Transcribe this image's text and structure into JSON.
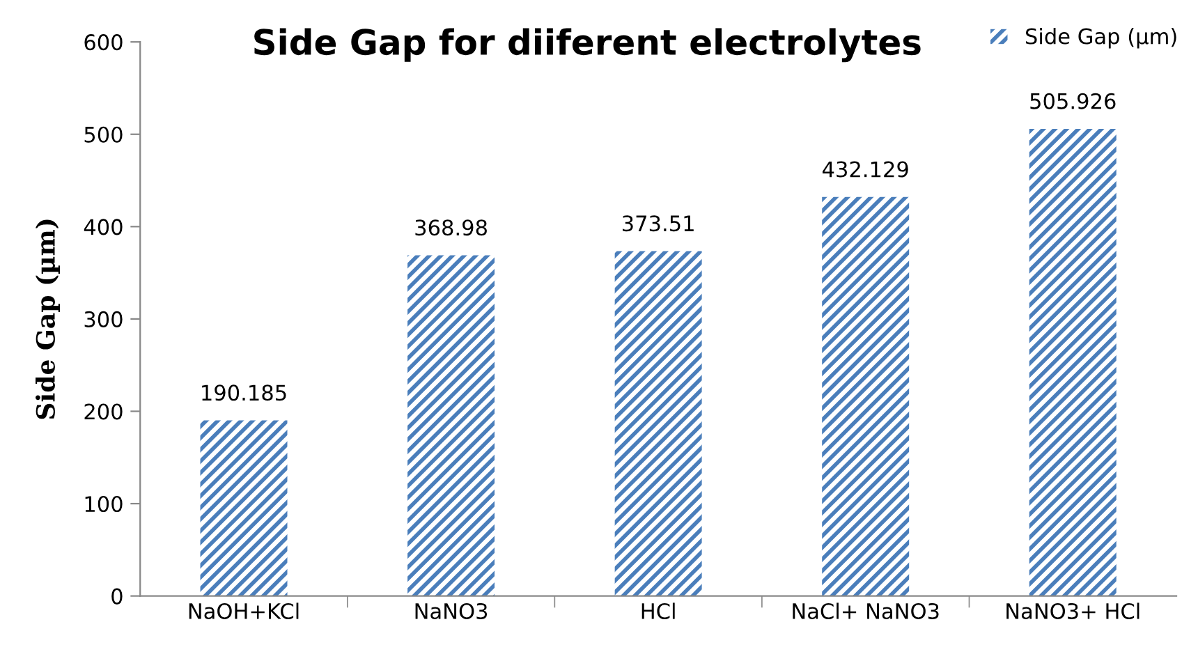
{
  "chart_data": {
    "type": "bar",
    "title": "Side Gap for diiferent electrolytes",
    "ylabel": "Side Gap (µm)",
    "categories": [
      "NaOH+KCl",
      "NaNO3",
      "HCl",
      "NaCl+ NaNO3",
      "NaNO3+ HCl"
    ],
    "series": [
      {
        "name": "Side Gap (µm)",
        "color": "#4a7ebb",
        "values": [
          190.185,
          368.98,
          373.51,
          432.129,
          505.926
        ]
      }
    ],
    "ylim": [
      0,
      600
    ],
    "yticks": [
      0,
      100,
      200,
      300,
      400,
      500,
      600
    ],
    "grid": false,
    "legend": "top right",
    "data_labels": true
  }
}
